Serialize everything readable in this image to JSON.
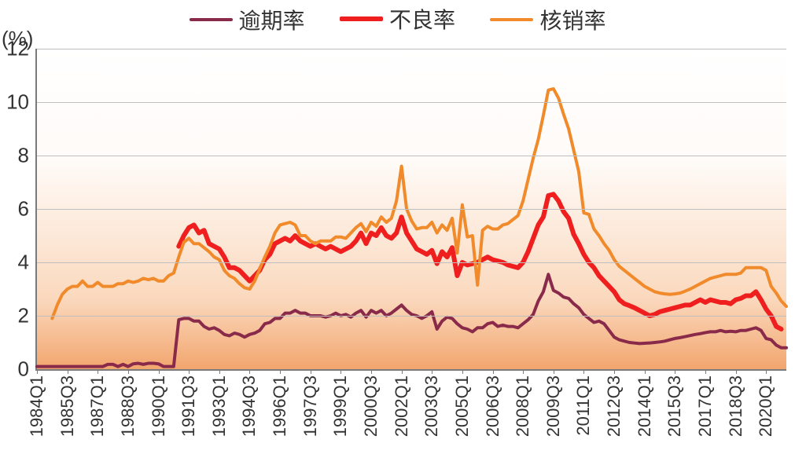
{
  "chart": {
    "type": "line",
    "y_axis_title": "(%)",
    "ylim": [
      0,
      12
    ],
    "ytick_step": 2,
    "yticks": [
      0,
      2,
      4,
      6,
      8,
      10,
      12
    ],
    "x_categories": [
      "1984Q1",
      "1985Q3",
      "1987Q1",
      "1988Q3",
      "1990Q1",
      "1991Q3",
      "1993Q1",
      "1994Q3",
      "1996Q1",
      "1997Q3",
      "1999Q1",
      "2000Q3",
      "2002Q1",
      "2003Q3",
      "2005Q1",
      "2006Q3",
      "2008Q1",
      "2009Q3",
      "2011Q1",
      "2012Q3",
      "2014Q1",
      "2015Q3",
      "2017Q1",
      "2018Q3",
      "2020Q1"
    ],
    "x_start_index": 0,
    "x_end_index": 148,
    "x_step_indices": 6,
    "grid_color": "#bfbfbf",
    "axis_color": "#7a7a7a",
    "background_color": "#ffffff",
    "gradient_top": "rgba(245,170,110,0)",
    "gradient_bottom": "rgba(240,150,85,0.85)",
    "label_fontsize": 26,
    "legend_fontsize": 28,
    "xlabel_fontsize": 22,
    "series": [
      {
        "key": "overdue",
        "label": "逾期率",
        "color": "#8a2a4a",
        "width": 4,
        "data": [
          0.1,
          0.1,
          0.1,
          0.1,
          0.1,
          0.1,
          0.1,
          0.1,
          0.1,
          0.1,
          0.1,
          0.1,
          0.1,
          0.1,
          0.18,
          0.18,
          0.1,
          0.18,
          0.1,
          0.2,
          0.22,
          0.18,
          0.22,
          0.22,
          0.2,
          0.1,
          0.1,
          0.1,
          1.85,
          1.9,
          1.9,
          1.8,
          1.8,
          1.6,
          1.5,
          1.55,
          1.45,
          1.3,
          1.25,
          1.35,
          1.3,
          1.2,
          1.3,
          1.35,
          1.45,
          1.7,
          1.75,
          1.9,
          1.9,
          2.1,
          2.1,
          2.2,
          2.1,
          2.1,
          2.0,
          2.0,
          2.0,
          1.95,
          2.0,
          2.1,
          2.0,
          2.05,
          1.95,
          2.1,
          2.2,
          1.95,
          2.2,
          2.1,
          2.2,
          2.0,
          2.1,
          2.25,
          2.4,
          2.2,
          2.05,
          2.0,
          1.9,
          2.0,
          2.15,
          1.5,
          1.8,
          1.95,
          1.9,
          1.7,
          1.55,
          1.5,
          1.4,
          1.55,
          1.55,
          1.7,
          1.75,
          1.6,
          1.65,
          1.6,
          1.6,
          1.55,
          1.7,
          1.85,
          2.05,
          2.55,
          2.9,
          3.55,
          2.95,
          2.85,
          2.7,
          2.65,
          2.45,
          2.3,
          2.05,
          1.9,
          1.75,
          1.8,
          1.7,
          1.45,
          1.2,
          1.1,
          1.05,
          1.0,
          0.98,
          0.96,
          0.97,
          0.98,
          1.0,
          1.02,
          1.05,
          1.1,
          1.15,
          1.18,
          1.22,
          1.26,
          1.3,
          1.33,
          1.37,
          1.4,
          1.4,
          1.45,
          1.4,
          1.42,
          1.4,
          1.45,
          1.45,
          1.5,
          1.55,
          1.45,
          1.15,
          1.1,
          0.9,
          0.8,
          0.8
        ]
      },
      {
        "key": "npl",
        "label": "不良率",
        "color": "#ef1f1f",
        "width": 6,
        "data": [
          null,
          null,
          null,
          null,
          null,
          null,
          null,
          null,
          null,
          null,
          null,
          null,
          null,
          null,
          null,
          null,
          null,
          null,
          null,
          null,
          null,
          null,
          null,
          null,
          null,
          null,
          null,
          null,
          4.6,
          5.0,
          5.3,
          5.4,
          5.1,
          5.2,
          4.7,
          4.6,
          4.5,
          4.2,
          3.8,
          3.8,
          3.7,
          3.5,
          3.3,
          3.5,
          3.7,
          4.1,
          4.3,
          4.7,
          4.8,
          4.9,
          4.8,
          5.0,
          4.8,
          4.7,
          4.6,
          4.7,
          4.6,
          4.5,
          4.6,
          4.5,
          4.4,
          4.5,
          4.6,
          4.8,
          5.1,
          4.7,
          5.1,
          5.0,
          5.3,
          5.0,
          4.9,
          5.1,
          5.7,
          5.1,
          4.8,
          4.5,
          4.4,
          4.3,
          4.45,
          3.95,
          4.4,
          4.2,
          4.55,
          3.5,
          4.0,
          3.9,
          3.95,
          4.0,
          4.1,
          4.2,
          4.1,
          4.05,
          4.0,
          3.9,
          3.85,
          3.8,
          4.0,
          4.4,
          4.9,
          5.4,
          5.7,
          6.5,
          6.55,
          6.3,
          5.9,
          5.65,
          5.05,
          4.7,
          4.3,
          4.0,
          3.8,
          3.5,
          3.3,
          3.1,
          2.9,
          2.6,
          2.45,
          2.38,
          2.3,
          2.2,
          2.1,
          2.0,
          2.05,
          2.15,
          2.2,
          2.25,
          2.3,
          2.35,
          2.4,
          2.4,
          2.5,
          2.6,
          2.5,
          2.6,
          2.55,
          2.5,
          2.5,
          2.45,
          2.6,
          2.65,
          2.75,
          2.75,
          2.9,
          2.6,
          2.25,
          2.0,
          1.6,
          1.5
        ]
      },
      {
        "key": "chargeoff",
        "label": "核销率",
        "color": "#f08a2a",
        "width": 4,
        "data": [
          null,
          null,
          null,
          1.9,
          2.4,
          2.8,
          3.0,
          3.1,
          3.1,
          3.3,
          3.1,
          3.1,
          3.25,
          3.1,
          3.1,
          3.1,
          3.2,
          3.2,
          3.3,
          3.25,
          3.3,
          3.4,
          3.35,
          3.4,
          3.3,
          3.3,
          3.5,
          3.6,
          4.2,
          4.75,
          4.9,
          4.7,
          4.7,
          4.55,
          4.4,
          4.2,
          4.1,
          3.7,
          3.5,
          3.4,
          3.2,
          3.05,
          3.0,
          3.3,
          3.75,
          4.2,
          4.6,
          5.1,
          5.4,
          5.45,
          5.5,
          5.4,
          5.0,
          5.0,
          4.8,
          4.7,
          4.8,
          4.8,
          4.8,
          4.95,
          4.95,
          4.9,
          5.1,
          5.3,
          5.45,
          5.15,
          5.5,
          5.35,
          5.7,
          5.5,
          5.65,
          6.3,
          7.6,
          6.0,
          5.55,
          5.25,
          5.3,
          5.3,
          5.5,
          5.1,
          5.4,
          5.2,
          5.65,
          4.35,
          6.15,
          4.95,
          5.0,
          3.15,
          5.2,
          5.35,
          5.25,
          5.25,
          5.4,
          5.45,
          5.6,
          5.75,
          6.3,
          7.1,
          7.9,
          8.6,
          9.5,
          10.45,
          10.5,
          10.15,
          9.55,
          9.0,
          8.2,
          7.4,
          5.85,
          5.8,
          5.25,
          5.0,
          4.7,
          4.45,
          4.1,
          3.85,
          3.7,
          3.55,
          3.4,
          3.25,
          3.1,
          3.0,
          2.9,
          2.85,
          2.82,
          2.8,
          2.82,
          2.85,
          2.92,
          3.0,
          3.1,
          3.2,
          3.3,
          3.4,
          3.45,
          3.5,
          3.55,
          3.55,
          3.55,
          3.6,
          3.8,
          3.8,
          3.8,
          3.8,
          3.7,
          3.1,
          2.85,
          2.55,
          2.35
        ]
      }
    ]
  }
}
